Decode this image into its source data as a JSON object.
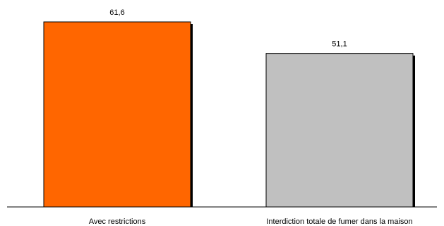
{
  "chart_data": {
    "type": "bar",
    "title": "",
    "xlabel": "",
    "ylabel": "",
    "categories": [
      "Avec restrictions",
      "Interdiction totale de fumer dans la maison"
    ],
    "values": [
      61.6,
      51.1
    ],
    "value_labels": [
      "61,6",
      "51,1"
    ],
    "bar_colors": [
      "#ff6600",
      "#c0c0c0"
    ],
    "ylim": [
      0,
      61.6
    ],
    "grid": false,
    "legend": "none"
  }
}
